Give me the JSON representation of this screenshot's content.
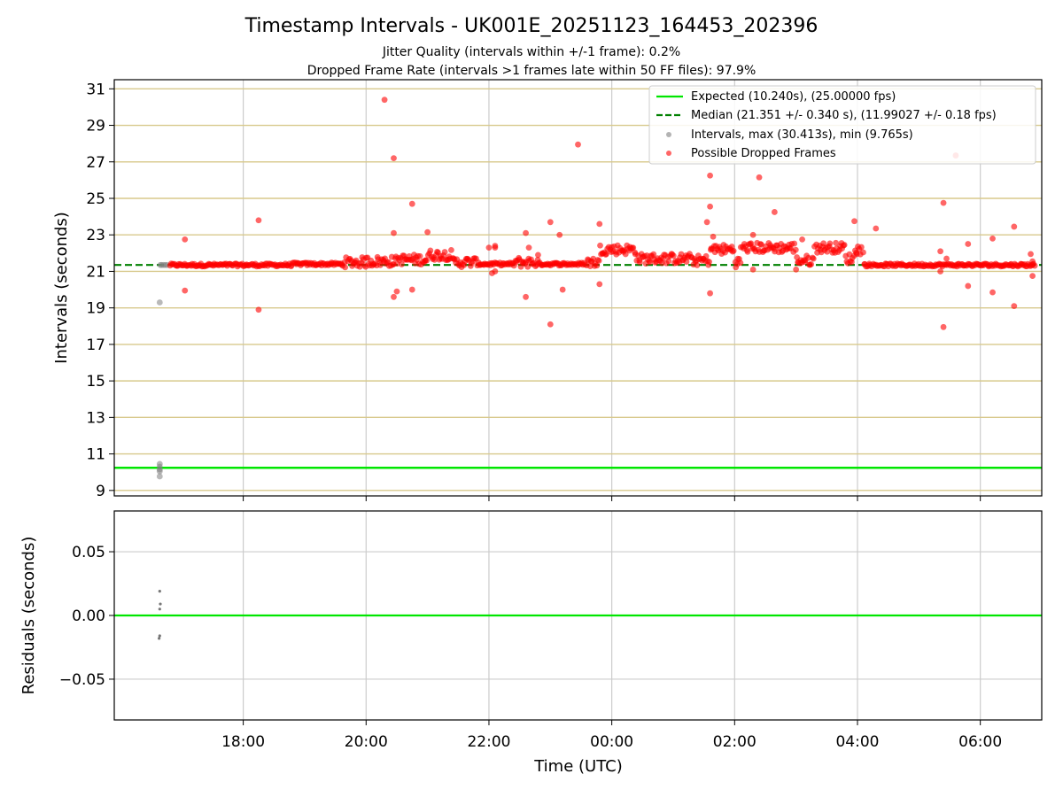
{
  "chart_data": [
    {
      "type": "scatter",
      "title": "Timestamp Intervals - UK001E_20251123_164453_202396",
      "subtitle_lines": [
        "Jitter Quality (intervals within +/-1 frame): 0.2%",
        "Dropped Frame Rate (intervals >1 frames late within 50 FF files): 97.9%"
      ],
      "ylabel": "Intervals (seconds)",
      "xlabel": "",
      "x_unit": "hours since 00:00 UTC (negative = previous day)",
      "xlim": [
        -8.1,
        7.0
      ],
      "ylim": [
        8.7,
        31.5
      ],
      "y_ticks": [
        9,
        11,
        13,
        15,
        17,
        19,
        21,
        23,
        25,
        27,
        29,
        31
      ],
      "x_ticks": [
        -6,
        -4,
        -2,
        0,
        2,
        4,
        6
      ],
      "grid": "horizontal lines goldenrod, vertical lines gray",
      "expected_interval": 10.24,
      "median_interval": 21.351,
      "legend_position": "top-right",
      "legend": [
        {
          "label": "Expected (10.240s), (25.00000 fps)",
          "style": "solid-line",
          "color": "#00e600"
        },
        {
          "label": "Median (21.351 +/- 0.340 s), (11.99027 +/- 0.18 fps)",
          "style": "dashed-line",
          "color": "#008000"
        },
        {
          "label": "Intervals, max (30.413s), min (9.765s)",
          "style": "marker",
          "color": "#808080"
        },
        {
          "label": "Possible Dropped Frames",
          "style": "marker",
          "color": "#ff0000"
        }
      ],
      "series": [
        {
          "name": "Intervals",
          "color": "#808080",
          "points": [
            [
              -7.35,
              21.35
            ],
            [
              -7.33,
              21.35
            ],
            [
              -7.3,
              21.35
            ],
            [
              -7.27,
              21.35
            ],
            [
              -7.24,
              21.35
            ],
            [
              -7.36,
              19.3
            ],
            [
              -7.36,
              10.45
            ],
            [
              -7.36,
              10.3
            ],
            [
              -7.36,
              10.15
            ],
            [
              -7.36,
              10.05
            ],
            [
              -7.36,
              9.77
            ]
          ]
        },
        {
          "name": "Possible Dropped Frames",
          "color": "#ff0000",
          "baseline_segments": [
            [
              -7.2,
              -6.3,
              21.35
            ],
            [
              -6.3,
              -5.2,
              21.35
            ],
            [
              -5.2,
              -4.4,
              21.4
            ],
            [
              -4.4,
              -4.0,
              21.5
            ],
            [
              -4.0,
              -3.5,
              21.55
            ],
            [
              -3.5,
              -3.0,
              21.65
            ],
            [
              -3.0,
              -2.6,
              21.9
            ],
            [
              -2.6,
              -2.2,
              21.5
            ],
            [
              -2.2,
              -1.6,
              21.4
            ],
            [
              -1.6,
              -1.2,
              21.5
            ],
            [
              -1.2,
              -0.4,
              21.4
            ],
            [
              -0.4,
              -0.2,
              21.5
            ],
            [
              -0.2,
              0.4,
              22.2
            ],
            [
              0.4,
              1.3,
              21.7
            ],
            [
              1.3,
              1.6,
              21.6
            ],
            [
              1.6,
              2.0,
              22.2
            ],
            [
              2.0,
              2.1,
              21.5
            ],
            [
              2.1,
              3.0,
              22.3
            ],
            [
              3.0,
              3.3,
              21.6
            ],
            [
              3.3,
              3.8,
              22.3
            ],
            [
              3.8,
              3.95,
              21.7
            ],
            [
              3.95,
              4.1,
              22.2
            ],
            [
              4.1,
              6.9,
              21.35
            ]
          ],
          "outliers": [
            [
              -6.95,
              22.75
            ],
            [
              -6.95,
              19.95
            ],
            [
              -5.75,
              23.8
            ],
            [
              -5.75,
              18.9
            ],
            [
              -3.7,
              30.4
            ],
            [
              -3.55,
              27.2
            ],
            [
              -3.55,
              23.1
            ],
            [
              -3.55,
              19.6
            ],
            [
              -3.5,
              19.9
            ],
            [
              -3.25,
              24.7
            ],
            [
              -3.25,
              20.0
            ],
            [
              -3.0,
              23.15
            ],
            [
              -2.0,
              22.3
            ],
            [
              -1.9,
              22.3
            ],
            [
              -1.9,
              22.4
            ],
            [
              -1.9,
              21.0
            ],
            [
              -1.95,
              20.9
            ],
            [
              -1.4,
              23.1
            ],
            [
              -1.4,
              19.6
            ],
            [
              -1.35,
              22.3
            ],
            [
              -1.2,
              21.9
            ],
            [
              -1.0,
              23.7
            ],
            [
              -1.0,
              18.1
            ],
            [
              -0.85,
              23.0
            ],
            [
              -0.8,
              20.0
            ],
            [
              -0.55,
              27.95
            ],
            [
              -0.2,
              23.6
            ],
            [
              -0.2,
              20.3
            ],
            [
              1.55,
              23.7
            ],
            [
              1.6,
              26.25
            ],
            [
              1.6,
              24.55
            ],
            [
              1.65,
              22.9
            ],
            [
              1.6,
              19.8
            ],
            [
              2.3,
              23.0
            ],
            [
              2.3,
              21.1
            ],
            [
              2.4,
              26.15
            ],
            [
              2.65,
              24.25
            ],
            [
              3.1,
              22.75
            ],
            [
              3.0,
              21.1
            ],
            [
              3.95,
              23.75
            ],
            [
              4.3,
              23.35
            ],
            [
              5.35,
              22.1
            ],
            [
              5.35,
              21.0
            ],
            [
              5.4,
              24.75
            ],
            [
              5.4,
              17.95
            ],
            [
              5.45,
              21.7
            ],
            [
              5.6,
              27.35
            ],
            [
              5.8,
              22.5
            ],
            [
              5.8,
              20.2
            ],
            [
              6.2,
              22.8
            ],
            [
              6.2,
              19.85
            ],
            [
              6.55,
              23.45
            ],
            [
              6.55,
              19.1
            ],
            [
              6.85,
              21.55
            ],
            [
              6.85,
              20.75
            ],
            [
              6.82,
              21.95
            ]
          ]
        }
      ]
    },
    {
      "type": "scatter",
      "title": "",
      "ylabel": "Residuals (seconds)",
      "xlabel": "Time (UTC)",
      "xlim": [
        -8.1,
        7.0
      ],
      "ylim": [
        -0.082,
        0.082
      ],
      "y_ticks": [
        0.05,
        0.0,
        -0.05
      ],
      "y_tick_labels": [
        "0.05",
        "0.00",
        "−0.05"
      ],
      "x_ticks": [
        -6,
        -4,
        -2,
        0,
        2,
        4,
        6
      ],
      "x_tick_labels": [
        "18:00",
        "20:00",
        "22:00",
        "00:00",
        "02:00",
        "04:00",
        "06:00"
      ],
      "grid": "gray",
      "zero_line_color": "#00e600",
      "series": [
        {
          "name": "Residuals",
          "color": "#555555",
          "points": [
            [
              -7.36,
              0.019
            ],
            [
              -7.35,
              0.009
            ],
            [
              -7.36,
              0.005
            ],
            [
              -7.36,
              -0.016
            ],
            [
              -7.37,
              -0.018
            ]
          ]
        }
      ]
    }
  ]
}
